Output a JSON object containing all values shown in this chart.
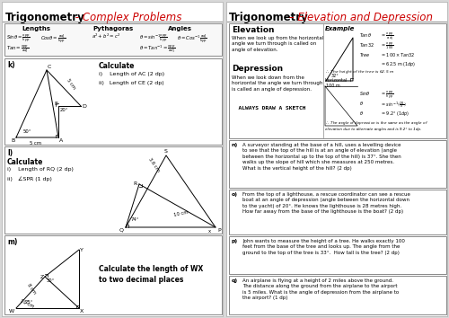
{
  "left_title": "Trigonometry",
  "left_subtitle": " - Complex Problems",
  "right_title": "Trigonometry",
  "right_subtitle": " – Elevation and Depression",
  "bg_color": "#d8d8d8",
  "k_calc": [
    "i)    Length of AC (2 dp)",
    "ii)   Length of CE (2 dp)"
  ],
  "l_calc": [
    "i)    Length of RQ (2 dp)",
    "ii)   ∠SPR (1 dp)"
  ],
  "n_text": "A surveyor standing at the base of a hill, uses a levelling device\nto see that the top of the hill is at an angle of elevation (angle\nbetween the horizontal up to the top of the hill) is 37°. She then\nwalks up the slope of hill which she measures at 250 metres.\nWhat is the vertical height of the hill? (2 dp)",
  "o_text": "From the top of a lighthouse, a rescue coordinator can see a rescue\nboat at an angle of depression (angle between the horizontal down\nto the yacht) of 20°. He knows the lighthouse is 28 metres high.\nHow far away from the base of the lighthouse is the boat? (2 dp)",
  "p_text": "John wants to measure the height of a tree. He walks exactly 100\nfeet from the base of the tree and looks up. The angle from the\nground to the top of the tree is 33°.  How tall is the tree? (2 dp)",
  "q_text": "An airplane is flying at a height of 2 miles above the ground.\nThe distance along the ground from the airplane to the airport\nis 5 miles. What is the angle of depression from the airplane to\nthe airport? (1 dp)"
}
